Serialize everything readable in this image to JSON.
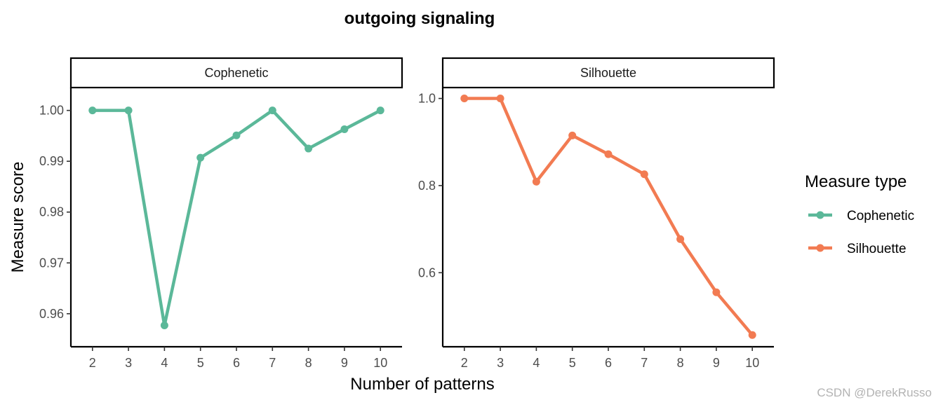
{
  "chart_data": {
    "type": "line",
    "title": "outgoing signaling",
    "xlabel": "Number of patterns",
    "ylabel": "Measure score",
    "x": [
      2,
      3,
      4,
      5,
      6,
      7,
      8,
      9,
      10
    ],
    "grid": false,
    "legend": {
      "title": "Measure type",
      "placement": "right",
      "entries": [
        "Cophenetic",
        "Silhouette"
      ]
    },
    "panels": [
      {
        "name": "Cophenetic",
        "color": "#5bb899",
        "values": [
          1.0,
          1.0,
          0.9577,
          0.9907,
          0.9951,
          1.0,
          0.9925,
          0.9963,
          1.0
        ],
        "ylim": [
          0.9535,
          1.0045
        ],
        "yticks": [
          0.96,
          0.97,
          0.98,
          0.99,
          1.0
        ],
        "ytick_labels": [
          "0.96",
          "0.97",
          "0.98",
          "0.99",
          "1.00"
        ]
      },
      {
        "name": "Silhouette",
        "color": "#f27b52",
        "values": [
          1.0,
          1.0,
          0.809,
          0.915,
          0.872,
          0.826,
          0.677,
          0.555,
          0.457
        ],
        "ylim": [
          0.43,
          1.025
        ],
        "yticks": [
          0.6,
          0.8,
          1.0
        ],
        "ytick_labels": [
          "0.6",
          "0.8",
          "1.0"
        ]
      }
    ],
    "xtick_labels": [
      "2",
      "3",
      "4",
      "5",
      "6",
      "7",
      "8",
      "9",
      "10"
    ]
  },
  "watermark": "CSDN @DerekRusso"
}
